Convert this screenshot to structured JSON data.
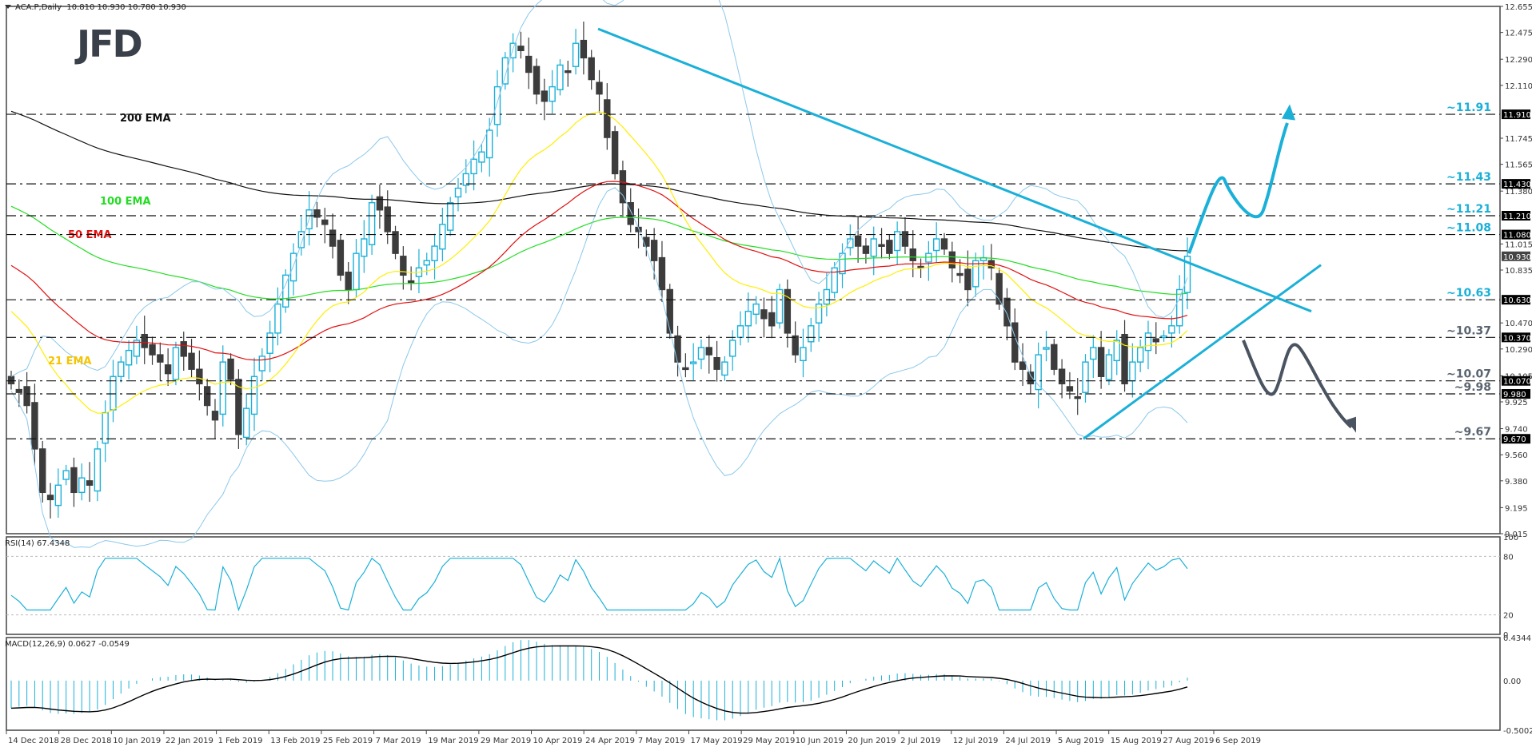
{
  "header": {
    "symbol_timeframe": "ACA.P,Daily",
    "ohlc": "10.810 10.930 10.780 10.930"
  },
  "logo": {
    "text": "JFD"
  },
  "rsi_panel": {
    "label": "RSI(14) 67.4348"
  },
  "macd_panel": {
    "label": "MACD(12,26,9) 0.0627 -0.0549"
  },
  "colors": {
    "bull": "#1ab0d8",
    "bear": "#3c3c3c",
    "ema21": "#ffee00",
    "ema50": "#e01010",
    "ema100": "#22dd22",
    "ema200": "#111111",
    "bollinger": "#8cc8ea",
    "trend": "#1ab0d8",
    "bear_arrow": "#4a5460",
    "level_label_blue": "#1ab0d8",
    "level_label_grey": "#5a6470"
  },
  "chart_data": [
    {
      "type": "candlestick",
      "title": "ACA.P,Daily",
      "ylim": [
        9.015,
        12.655
      ],
      "y_ticks": [
        "12.655",
        "12.475",
        "12.290",
        "12.110",
        "11.745",
        "11.565",
        "11.380",
        "11.015",
        "10.835",
        "10.470",
        "10.290",
        "10.105",
        "9.925",
        "9.740",
        "9.560",
        "9.380",
        "9.195",
        "9.015"
      ],
      "x_ticks": [
        "14 Dec 2018",
        "28 Dec 2018",
        "10 Jan 2019",
        "22 Jan 2019",
        "1 Feb 2019",
        "13 Feb 2019",
        "25 Feb 2019",
        "7 Mar 2019",
        "19 Mar 2019",
        "29 Mar 2019",
        "10 Apr 2019",
        "24 Apr 2019",
        "7 May 2019",
        "17 May 2019",
        "29 May 2019",
        "10 Jun 2019",
        "20 Jun 2019",
        "2 Jul 2019",
        "12 Jul 2019",
        "24 Jul 2019",
        "5 Aug 2019",
        "15 Aug 2019",
        "27 Aug 2019",
        "6 Sep 2019"
      ],
      "current_price": "10.930",
      "legend": [
        "200 EMA",
        "100 EMA",
        "50 EMA",
        "21 EMA"
      ],
      "levels": [
        {
          "value": 11.91,
          "label": "~11.91",
          "tag": "11.910",
          "color": "blue"
        },
        {
          "value": 11.43,
          "label": "~11.43",
          "tag": "11.430",
          "color": "blue"
        },
        {
          "value": 11.21,
          "label": "~11.21",
          "tag": "11.210",
          "color": "blue"
        },
        {
          "value": 11.08,
          "label": "~11.08",
          "tag": "11.080",
          "color": "blue"
        },
        {
          "value": 10.63,
          "label": "~10.63",
          "tag": "10.630",
          "color": "blue"
        },
        {
          "value": 10.37,
          "label": "~10.37",
          "tag": "10.370",
          "color": "grey"
        },
        {
          "value": 10.07,
          "label": "~10.07",
          "tag": "10.070",
          "color": "grey"
        },
        {
          "value": 9.98,
          "label": "~9.98",
          "tag": "9.980",
          "color": "grey"
        },
        {
          "value": 9.67,
          "label": "~9.67",
          "tag": "9.670",
          "color": "grey"
        }
      ],
      "closes": [
        10.05,
        9.99,
        9.9,
        9.6,
        9.3,
        9.25,
        9.35,
        9.45,
        9.3,
        9.4,
        9.35,
        9.6,
        9.85,
        10.1,
        10.2,
        10.28,
        10.35,
        10.3,
        10.25,
        10.2,
        10.12,
        10.3,
        10.24,
        10.15,
        10.05,
        9.9,
        9.8,
        10.2,
        10.08,
        9.7,
        9.88,
        10.1,
        10.24,
        10.4,
        10.6,
        10.8,
        10.95,
        11.1,
        11.25,
        11.2,
        11.15,
        11.0,
        10.8,
        10.7,
        10.95,
        11.05,
        11.3,
        11.25,
        11.1,
        10.95,
        10.8,
        10.75,
        10.85,
        10.9,
        11.0,
        11.15,
        11.3,
        11.4,
        11.5,
        11.6,
        11.65,
        11.8,
        12.1,
        12.3,
        12.4,
        12.35,
        12.2,
        12.05,
        12.0,
        12.1,
        12.25,
        12.2,
        12.4,
        12.3,
        12.15,
        12.05,
        11.75,
        11.5,
        11.3,
        11.15,
        11.1,
        11.0,
        10.9,
        10.7,
        10.4,
        10.2,
        10.15,
        10.2,
        10.3,
        10.25,
        10.15,
        10.2,
        10.35,
        10.45,
        10.55,
        10.6,
        10.5,
        10.45,
        10.7,
        10.4,
        10.25,
        10.3,
        10.45,
        10.6,
        10.7,
        10.85,
        10.95,
        11.05,
        11.0,
        10.95,
        11.05,
        11.0,
        10.95,
        11.1,
        11.0,
        10.9,
        10.85,
        10.95,
        11.05,
        10.98,
        10.85,
        10.8,
        10.7,
        10.9,
        10.92,
        10.85,
        10.6,
        10.45,
        10.2,
        10.15,
        10.05,
        10.25,
        10.3,
        10.15,
        10.05,
        10.0,
        9.95,
        10.2,
        10.3,
        10.1,
        10.25,
        10.35,
        10.05,
        10.2,
        10.3,
        10.4,
        10.34,
        10.38,
        10.45,
        10.7,
        10.93
      ],
      "series": [
        {
          "name": "RSI(14)",
          "range": [
            0,
            100
          ],
          "guides": [
            20,
            80
          ],
          "last": 67.4348
        },
        {
          "name": "MACD(12,26,9)",
          "range": [
            -0.5002,
            0.4344
          ],
          "values_last": [
            0.0627,
            -0.0549
          ]
        }
      ],
      "annotations": [
        "descending trendline from ~12.5 (late Apr 2019) through ~11.43 (late Jul) to ~10.93 (6 Sep)",
        "ascending trendline from ~9.67 (mid Aug 2019)",
        "bullish projection arrow toward ~11.91",
        "bearish projection arrow toward ~9.67"
      ]
    }
  ]
}
